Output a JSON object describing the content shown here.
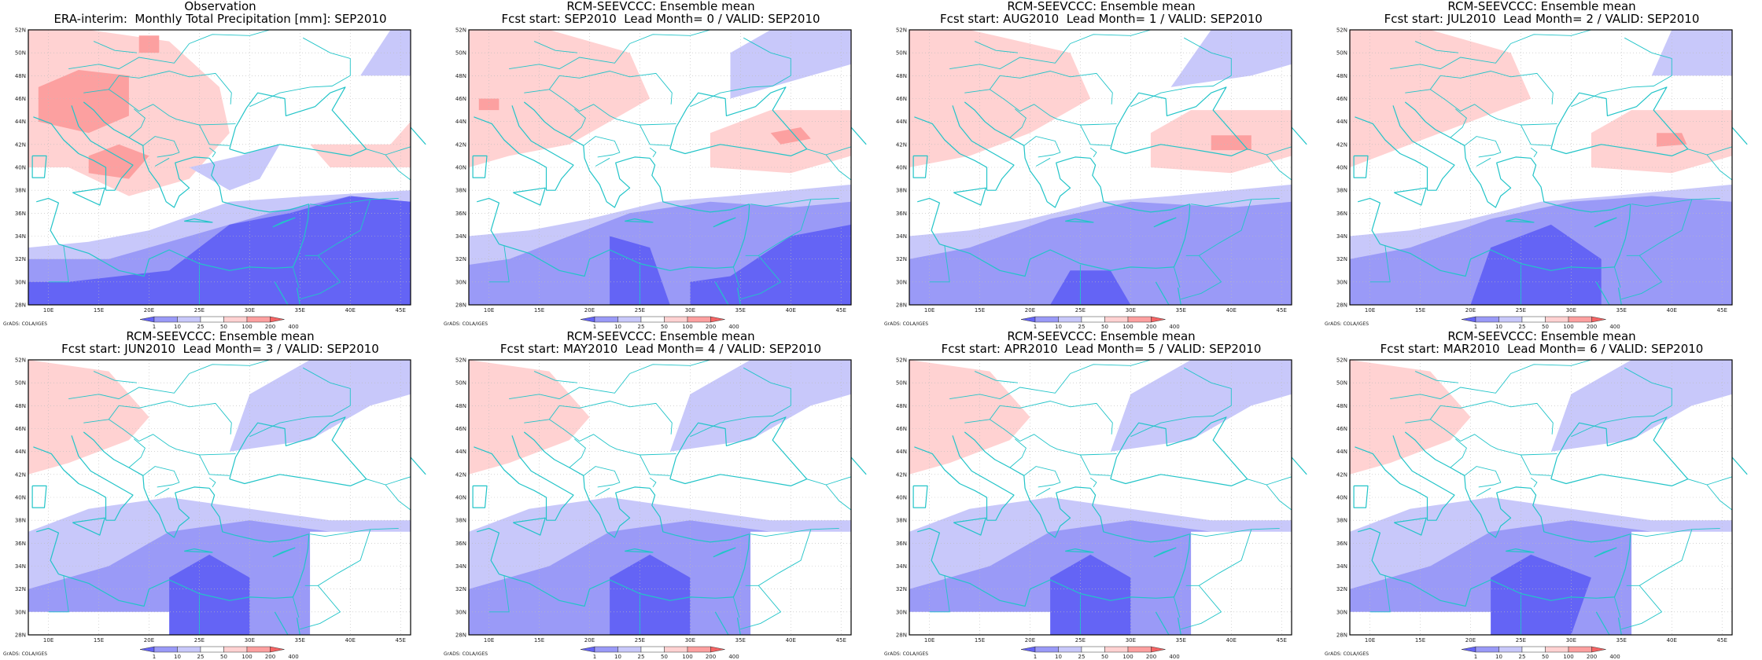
{
  "panels": [
    {
      "title_line1": "Observation",
      "title_line2": "ERA-interim:  Monthly Total Precipitation [mm]: SEP2010"
    },
    {
      "title_line1": "RCM-SEEVCCC: Ensemble mean",
      "title_line2": "Fcst start: SEP2010  Lead Month= 0 / VALID: SEP2010"
    },
    {
      "title_line1": "RCM-SEEVCCC: Ensemble mean",
      "title_line2": "Fcst start: AUG2010  Lead Month= 1 / VALID: SEP2010"
    },
    {
      "title_line1": "RCM-SEEVCCC: Ensemble mean",
      "title_line2": "Fcst start: JUL2010  Lead Month= 2 / VALID: SEP2010"
    },
    {
      "title_line1": "RCM-SEEVCCC: Ensemble mean",
      "title_line2": "Fcst start: JUN2010  Lead Month= 3 / VALID: SEP2010"
    },
    {
      "title_line1": "RCM-SEEVCCC: Ensemble mean",
      "title_line2": "Fcst start: MAY2010  Lead Month= 4 / VALID: SEP2010"
    },
    {
      "title_line1": "RCM-SEEVCCC: Ensemble mean",
      "title_line2": "Fcst start: APR2010  Lead Month= 5 / VALID: SEP2010"
    },
    {
      "title_line1": "RCM-SEEVCCC: Ensemble mean",
      "title_line2": "Fcst start: MAR2010  Lead Month= 6 / VALID: SEP2010"
    }
  ],
  "attribution": "GrADS: COLA/IGES",
  "colors": {
    "coast": "#22c4c8",
    "frame": "#000000",
    "grid": "#bbbbbb",
    "levels": [
      "#6464f5",
      "#9a9af7",
      "#c8c8fa",
      "#ffffff",
      "#ffd2d2",
      "#fca0a0",
      "#f56464"
    ]
  },
  "chart_data": {
    "type": "heatmap",
    "n_panels": 8,
    "layout": "2 rows x 4 columns",
    "x_ticks": [
      "10E",
      "15E",
      "20E",
      "25E",
      "30E",
      "35E",
      "40E",
      "45E"
    ],
    "x_tick_values": [
      10,
      15,
      20,
      25,
      30,
      35,
      40,
      45
    ],
    "y_ticks": [
      "28N",
      "30N",
      "32N",
      "34N",
      "36N",
      "38N",
      "40N",
      "42N",
      "44N",
      "46N",
      "48N",
      "50N",
      "52N"
    ],
    "y_tick_values": [
      28,
      30,
      32,
      34,
      36,
      38,
      40,
      42,
      44,
      46,
      48,
      50,
      52
    ],
    "xlim": [
      8,
      46
    ],
    "ylim": [
      28,
      52
    ],
    "colorbar_labels": [
      "1",
      "10",
      "25",
      "50",
      "100",
      "200",
      "400"
    ],
    "grid": true,
    "colorbar_placement": "bottom"
  }
}
